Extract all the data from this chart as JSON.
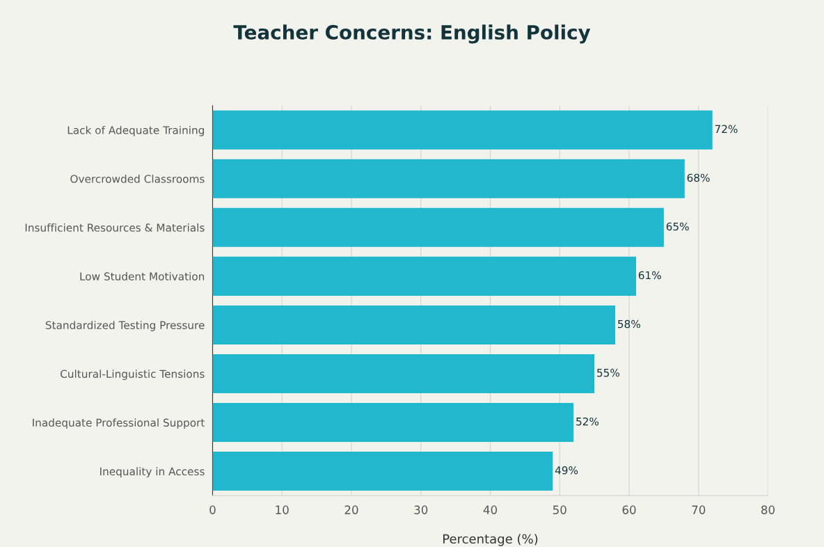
{
  "chart_data": {
    "type": "bar",
    "orientation": "horizontal",
    "title": "Teacher Concerns: English Policy",
    "xlabel": "Percentage (%)",
    "categories": [
      "Lack of Adequate Training",
      "Overcrowded Classrooms",
      "Insufficient Resources & Materials",
      "Low Student Motivation",
      "Standardized Testing Pressure",
      "Cultural-Linguistic Tensions",
      "Inadequate Professional Support",
      "Inequality in Access"
    ],
    "values": [
      72,
      68,
      65,
      61,
      58,
      55,
      52,
      49
    ],
    "value_labels": [
      "72%",
      "68%",
      "65%",
      "61%",
      "58%",
      "55%",
      "52%",
      "49%"
    ],
    "color": "#21b7cc",
    "xlim": [
      0,
      80
    ],
    "xticks": [
      0,
      10,
      20,
      30,
      40,
      50,
      60,
      70,
      80
    ],
    "grid": true
  }
}
